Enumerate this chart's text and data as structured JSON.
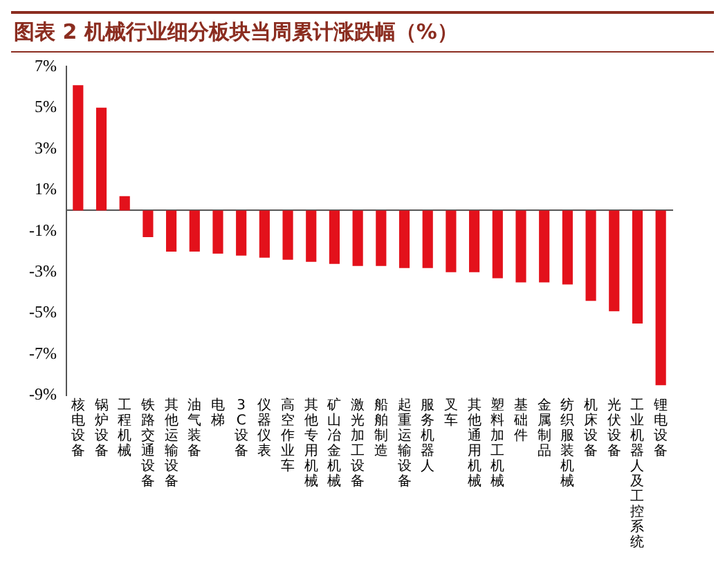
{
  "chart_data": {
    "type": "bar",
    "title": "图表 2  机械行业细分板块当周累计涨跌幅（%）",
    "categories": [
      "核电设备",
      "锅炉设备",
      "工程机械",
      "铁路交通设备",
      "其他运输设备",
      "油气装备",
      "电梯",
      "3C设备",
      "仪器仪表",
      "高空作业车",
      "其他专用机械",
      "矿山冶金机械",
      "激光加工设备",
      "船舶制造",
      "起重运输设备",
      "服务机器人",
      "叉车",
      "其他通用机械",
      "塑料加工机械",
      "基础件",
      "金属制品",
      "纺织服装机械",
      "机床设备",
      "光伏设备",
      "工业机器人及工控系统",
      "锂电设备"
    ],
    "values": [
      6.1,
      5.0,
      0.7,
      -1.3,
      -2.0,
      -2.0,
      -2.1,
      -2.2,
      -2.3,
      -2.4,
      -2.5,
      -2.6,
      -2.7,
      -2.7,
      -2.8,
      -2.8,
      -3.0,
      -3.0,
      -3.3,
      -3.5,
      -3.5,
      -3.6,
      -4.4,
      -4.9,
      -5.5,
      -8.5
    ],
    "color": "#e3111b",
    "ylim": [
      -9,
      7
    ],
    "yticks": [
      {
        "value": -9,
        "label": "-9%"
      },
      {
        "value": -7,
        "label": "-7%"
      },
      {
        "value": -5,
        "label": "-5%"
      },
      {
        "value": -3,
        "label": "-3%"
      },
      {
        "value": -1,
        "label": "-1%"
      },
      {
        "value": 1,
        "label": "1%"
      },
      {
        "value": 3,
        "label": "3%"
      },
      {
        "value": 5,
        "label": "5%"
      },
      {
        "value": 7,
        "label": "7%"
      }
    ],
    "grid": false,
    "legend": false
  }
}
